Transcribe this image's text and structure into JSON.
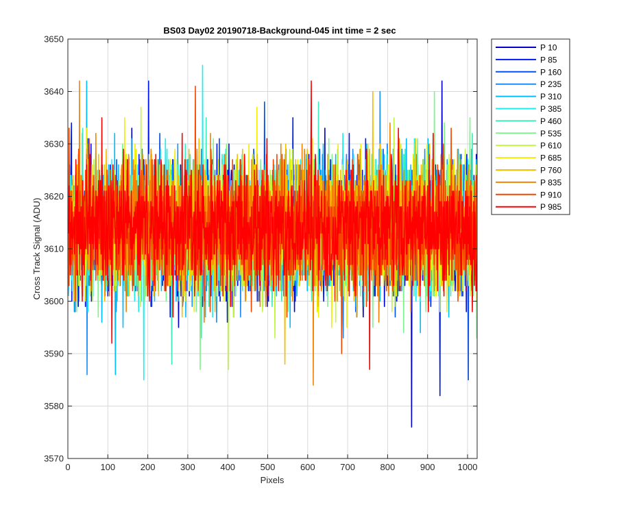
{
  "chart_data": {
    "type": "line",
    "title": "BS03 Day02 20190718-Background-045 int time = 2 sec",
    "xlabel": "Pixels",
    "ylabel": "Cross Track Signal (ADU)",
    "xlim": [
      0,
      1024
    ],
    "ylim": [
      3570,
      3650
    ],
    "xticks": [
      0,
      100,
      200,
      300,
      400,
      500,
      600,
      700,
      800,
      900,
      1000
    ],
    "yticks": [
      3570,
      3580,
      3590,
      3600,
      3610,
      3620,
      3630,
      3640,
      3650
    ],
    "grid": true,
    "legend_position": "outside-right-top",
    "x_description": "pixel index 1 to 1024",
    "series": [
      {
        "name": "P 10",
        "color": "#0000cc",
        "mean": 3614,
        "range": [
          3576,
          3642
        ]
      },
      {
        "name": "P 85",
        "color": "#0019e6",
        "mean": 3614,
        "range": [
          3582,
          3642
        ]
      },
      {
        "name": "P 160",
        "color": "#0050f0",
        "mean": 3614,
        "range": [
          3585,
          3638
        ]
      },
      {
        "name": "P 235",
        "color": "#1a8cf5",
        "mean": 3614,
        "range": [
          3586,
          3640
        ]
      },
      {
        "name": "P 310",
        "color": "#00bfff",
        "mean": 3614,
        "range": [
          3586,
          3642
        ]
      },
      {
        "name": "P 385",
        "color": "#1af0f0",
        "mean": 3614,
        "range": [
          3585,
          3645
        ]
      },
      {
        "name": "P 460",
        "color": "#3cebbe",
        "mean": 3614,
        "range": [
          3588,
          3638
        ]
      },
      {
        "name": "P 535",
        "color": "#7df58c",
        "mean": 3614,
        "range": [
          3587,
          3640
        ]
      },
      {
        "name": "P 610",
        "color": "#c3f53c",
        "mean": 3614,
        "range": [
          3587,
          3637
        ]
      },
      {
        "name": "P 685",
        "color": "#f0f000",
        "mean": 3614,
        "range": [
          3588,
          3637
        ]
      },
      {
        "name": "P 760",
        "color": "#f5be00",
        "mean": 3614,
        "range": [
          3588,
          3640
        ]
      },
      {
        "name": "P 835",
        "color": "#f58200",
        "mean": 3614,
        "range": [
          3584,
          3642
        ]
      },
      {
        "name": "P 910",
        "color": "#f54600",
        "mean": 3614,
        "range": [
          3590,
          3641
        ]
      },
      {
        "name": "P 985",
        "color": "#ff0000",
        "mean": 3614,
        "range": [
          3587,
          3642
        ]
      }
    ]
  }
}
